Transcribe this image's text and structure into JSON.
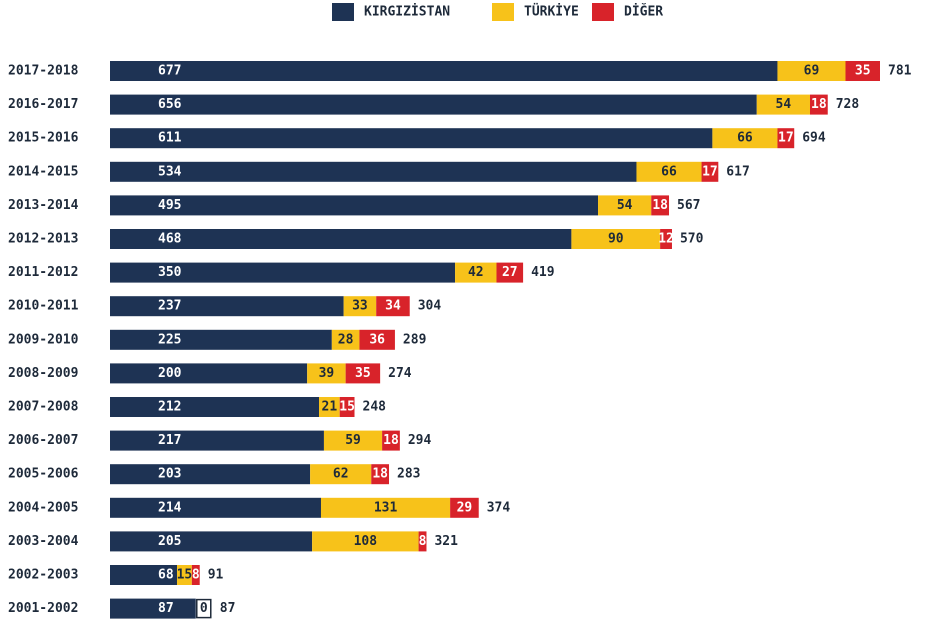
{
  "chart_data": {
    "type": "stacked-bar",
    "categories": [
      "2017-2018",
      "2016-2017",
      "2015-2016",
      "2014-2015",
      "2013-2014",
      "2012-2013",
      "2011-2012",
      "2010-2011",
      "2009-2010",
      "2008-2009",
      "2007-2008",
      "2006-2007",
      "2005-2006",
      "2004-2005",
      "2003-2004",
      "2002-2003",
      "2001-2002"
    ],
    "series": [
      {
        "name": "KIRGIZİSTAN",
        "color": "#1e3354",
        "values": [
          677,
          656,
          611,
          534,
          495,
          468,
          350,
          237,
          225,
          200,
          212,
          217,
          203,
          214,
          205,
          68,
          87
        ]
      },
      {
        "name": "TÜRKİYE",
        "color": "#f7c21a",
        "values": [
          69,
          54,
          66,
          66,
          54,
          90,
          42,
          33,
          28,
          39,
          21,
          59,
          62,
          131,
          108,
          15,
          0
        ]
      },
      {
        "name": "DİĞER",
        "color": "#d8232a",
        "values": [
          35,
          18,
          17,
          17,
          18,
          12,
          27,
          34,
          36,
          35,
          15,
          18,
          18,
          29,
          8,
          8,
          null
        ]
      }
    ],
    "totals": [
      781,
      728,
      694,
      617,
      567,
      570,
      419,
      304,
      289,
      274,
      248,
      294,
      283,
      374,
      321,
      91,
      87
    ],
    "legend": "top"
  }
}
